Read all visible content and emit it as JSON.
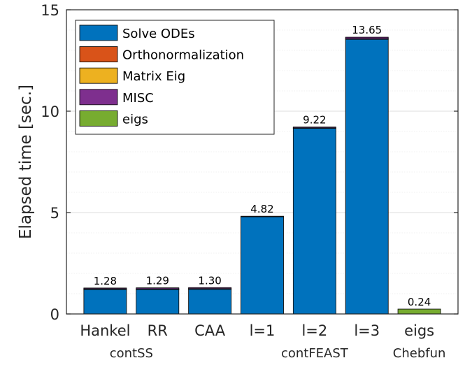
{
  "chart_data": {
    "type": "bar",
    "stacked": true,
    "ylabel": "Elapsed time [sec.]",
    "xlabel": "",
    "ylim": [
      0,
      15
    ],
    "yticks": [
      0,
      5,
      10,
      15
    ],
    "grid": true,
    "minor_grid": true,
    "legend_placement": "top-left",
    "categories": [
      "Hankel",
      "RR",
      "CAA",
      "l=1",
      "l=2",
      "l=3",
      "eigs"
    ],
    "groups": [
      {
        "label": "contSS",
        "categories": [
          "Hankel",
          "RR"
        ]
      },
      {
        "label": "contFEAST",
        "categories": [
          "l=1",
          "l=2",
          "l=3"
        ]
      },
      {
        "label": "Chebfun",
        "categories": [
          "eigs"
        ]
      }
    ],
    "totals_labels": [
      "1.28",
      "1.29",
      "1.30",
      "4.82",
      "9.22",
      "13.65",
      "0.24"
    ],
    "series": [
      {
        "name": "Solve ODEs",
        "color": "#0072bd",
        "values": [
          1.22,
          1.22,
          1.23,
          4.79,
          9.17,
          13.56,
          0
        ]
      },
      {
        "name": "Orthonormalization",
        "color": "#d95319",
        "values": [
          0.01,
          0.01,
          0.01,
          0.0,
          0.01,
          0.01,
          0
        ]
      },
      {
        "name": "Matrix Eig",
        "color": "#edb120",
        "values": [
          0.01,
          0.01,
          0.01,
          0.0,
          0.0,
          0.0,
          0
        ]
      },
      {
        "name": "MISC",
        "color": "#7e2f8e",
        "values": [
          0.04,
          0.05,
          0.05,
          0.03,
          0.04,
          0.08,
          0
        ]
      },
      {
        "name": "eigs",
        "color": "#77ac30",
        "values": [
          0,
          0,
          0,
          0,
          0,
          0,
          0.24
        ]
      }
    ]
  }
}
